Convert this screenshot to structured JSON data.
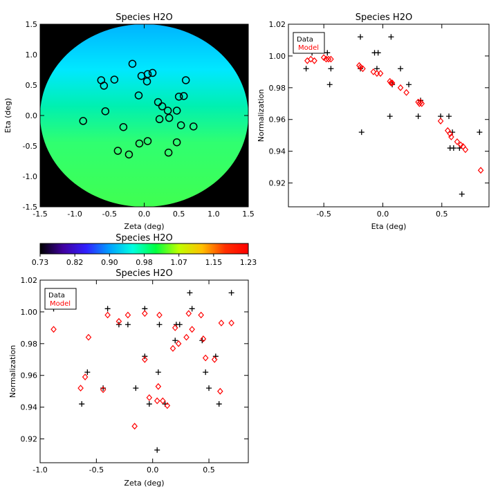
{
  "chart_data": [
    {
      "id": "map",
      "type": "heatmap",
      "title": "Species H2O",
      "xlabel": "Zeta (deg)",
      "ylabel": "Eta (deg)",
      "xlim": [
        -1.5,
        1.5
      ],
      "ylim": [
        -1.5,
        1.5
      ],
      "xticks": [
        "-1.5",
        "-1.0",
        "-0.5",
        "0.0",
        "0.5",
        "1.0",
        "1.5"
      ],
      "yticks": [
        "-1.5",
        "-1.0",
        "-0.5",
        "0.0",
        "0.5",
        "1.0",
        "1.5"
      ],
      "background_color": "#000000",
      "field_radius_deg": 1.5,
      "field_description": "gradient in Eta: cyan-blue at top (~0.93) to green at bottom (~1.03)",
      "points": [
        [
          -0.17,
          0.85
        ],
        [
          -0.04,
          0.65
        ],
        [
          0.05,
          0.68
        ],
        [
          0.12,
          0.7
        ],
        [
          0.04,
          0.56
        ],
        [
          -0.62,
          0.58
        ],
        [
          -0.58,
          0.49
        ],
        [
          -0.43,
          0.59
        ],
        [
          0.6,
          0.58
        ],
        [
          0.5,
          0.31
        ],
        [
          0.57,
          0.32
        ],
        [
          -0.08,
          0.33
        ],
        [
          0.2,
          0.22
        ],
        [
          0.26,
          0.15
        ],
        [
          0.34,
          0.08
        ],
        [
          0.47,
          0.08
        ],
        [
          -0.56,
          0.07
        ],
        [
          -0.88,
          -0.09
        ],
        [
          0.22,
          -0.06
        ],
        [
          0.36,
          -0.04
        ],
        [
          0.53,
          -0.16
        ],
        [
          0.71,
          -0.18
        ],
        [
          -0.3,
          -0.19
        ],
        [
          -0.07,
          -0.46
        ],
        [
          0.05,
          -0.42
        ],
        [
          0.47,
          -0.44
        ],
        [
          -0.38,
          -0.58
        ],
        [
          -0.22,
          -0.64
        ],
        [
          0.35,
          -0.61
        ]
      ]
    },
    {
      "id": "eta",
      "type": "scatter",
      "title": "Species H2O",
      "xlabel": "Eta (deg)",
      "ylabel": "Normalization",
      "xlim": [
        -0.8,
        0.9
      ],
      "ylim": [
        0.905,
        1.02
      ],
      "xticks": [
        -0.5,
        0.0,
        0.5
      ],
      "yticks": [
        0.92,
        0.94,
        0.96,
        0.98,
        1.0,
        1.02
      ],
      "legend": {
        "placement": "top-left",
        "entries": [
          {
            "label": "Data",
            "color": "#000000"
          },
          {
            "label": "Model",
            "color": "#ff0000"
          }
        ]
      },
      "series": [
        {
          "name": "Data",
          "marker": "plus",
          "color": "#000000",
          "points": [
            [
              -0.65,
              0.992
            ],
            [
              -0.6,
              1.002
            ],
            [
              -0.47,
              1.002
            ],
            [
              -0.45,
              0.982
            ],
            [
              -0.44,
              0.992
            ],
            [
              -0.19,
              1.012
            ],
            [
              -0.18,
              0.952
            ],
            [
              -0.19,
              0.992
            ],
            [
              -0.07,
              1.002
            ],
            [
              -0.04,
              1.002
            ],
            [
              -0.05,
              0.992
            ],
            [
              0.07,
              1.012
            ],
            [
              0.06,
              0.962
            ],
            [
              0.08,
              0.982
            ],
            [
              0.15,
              0.992
            ],
            [
              0.22,
              0.982
            ],
            [
              0.3,
              0.962
            ],
            [
              0.32,
              0.972
            ],
            [
              0.49,
              0.962
            ],
            [
              0.56,
              0.962
            ],
            [
              0.59,
              0.952
            ],
            [
              0.57,
              0.942
            ],
            [
              0.6,
              0.942
            ],
            [
              0.65,
              0.942
            ],
            [
              0.67,
              0.913
            ],
            [
              0.82,
              0.952
            ]
          ]
        },
        {
          "name": "Model",
          "marker": "diamond",
          "color": "#ff0000",
          "points": [
            [
              -0.64,
              0.997
            ],
            [
              -0.61,
              0.998
            ],
            [
              -0.58,
              0.997
            ],
            [
              -0.5,
              0.999
            ],
            [
              -0.48,
              0.998
            ],
            [
              -0.46,
              0.998
            ],
            [
              -0.44,
              0.998
            ],
            [
              -0.2,
              0.994
            ],
            [
              -0.19,
              0.993
            ],
            [
              -0.17,
              0.992
            ],
            [
              -0.08,
              0.99
            ],
            [
              -0.05,
              0.989
            ],
            [
              -0.02,
              0.989
            ],
            [
              0.06,
              0.984
            ],
            [
              0.07,
              0.983
            ],
            [
              0.08,
              0.983
            ],
            [
              0.15,
              0.98
            ],
            [
              0.2,
              0.977
            ],
            [
              0.3,
              0.971
            ],
            [
              0.31,
              0.97
            ],
            [
              0.32,
              0.971
            ],
            [
              0.33,
              0.97
            ],
            [
              0.49,
              0.959
            ],
            [
              0.55,
              0.953
            ],
            [
              0.57,
              0.951
            ],
            [
              0.58,
              0.949
            ],
            [
              0.63,
              0.946
            ],
            [
              0.66,
              0.944
            ],
            [
              0.68,
              0.943
            ],
            [
              0.7,
              0.941
            ],
            [
              0.83,
              0.928
            ]
          ]
        }
      ]
    },
    {
      "id": "colorbar",
      "type": "colorbar",
      "title": "Species H2O",
      "range": [
        0.73,
        1.23
      ],
      "ticks": [
        "0.73",
        "0.82",
        "0.90",
        "0.98",
        "1.07",
        "1.15",
        "1.23"
      ],
      "colors": [
        "#000000",
        "#4000a0",
        "#3020ff",
        "#00a0ff",
        "#00ffe0",
        "#00ff40",
        "#c0ff00",
        "#ffc000",
        "#ff3000",
        "#ff0000"
      ]
    },
    {
      "id": "zeta",
      "type": "scatter",
      "title": "Species H2O",
      "xlabel": "Zeta (deg)",
      "ylabel": "Normalization",
      "xlim": [
        -1.0,
        0.85
      ],
      "ylim": [
        0.905,
        1.02
      ],
      "xticks": [
        -1.0,
        -0.5,
        0.0,
        0.5
      ],
      "yticks": [
        0.92,
        0.94,
        0.96,
        0.98,
        1.0,
        1.02
      ],
      "legend": {
        "placement": "top-left",
        "entries": [
          {
            "label": "Data",
            "color": "#000000"
          },
          {
            "label": "Model",
            "color": "#ff0000"
          }
        ]
      },
      "series": [
        {
          "name": "Data",
          "marker": "plus",
          "color": "#000000",
          "points": [
            [
              -0.88,
              1.002
            ],
            [
              -0.63,
              0.942
            ],
            [
              -0.58,
              0.962
            ],
            [
              -0.44,
              0.952
            ],
            [
              -0.4,
              1.002
            ],
            [
              -0.3,
              0.992
            ],
            [
              -0.22,
              0.992
            ],
            [
              -0.15,
              0.952
            ],
            [
              -0.07,
              1.002
            ],
            [
              -0.07,
              0.972
            ],
            [
              -0.03,
              0.942
            ],
            [
              0.04,
              0.913
            ],
            [
              0.05,
              0.962
            ],
            [
              0.06,
              0.992
            ],
            [
              0.11,
              0.942
            ],
            [
              0.2,
              0.982
            ],
            [
              0.21,
              0.992
            ],
            [
              0.24,
              0.992
            ],
            [
              0.33,
              1.012
            ],
            [
              0.35,
              1.002
            ],
            [
              0.44,
              0.982
            ],
            [
              0.47,
              0.962
            ],
            [
              0.5,
              0.952
            ],
            [
              0.56,
              0.972
            ],
            [
              0.59,
              0.942
            ],
            [
              0.7,
              1.012
            ]
          ]
        },
        {
          "name": "Model",
          "marker": "diamond",
          "color": "#ff0000",
          "points": [
            [
              -0.88,
              0.989
            ],
            [
              -0.64,
              0.952
            ],
            [
              -0.6,
              0.959
            ],
            [
              -0.57,
              0.984
            ],
            [
              -0.44,
              0.951
            ],
            [
              -0.4,
              0.998
            ],
            [
              -0.3,
              0.994
            ],
            [
              -0.22,
              0.998
            ],
            [
              -0.16,
              0.928
            ],
            [
              -0.07,
              0.999
            ],
            [
              -0.07,
              0.97
            ],
            [
              -0.03,
              0.946
            ],
            [
              0.04,
              0.944
            ],
            [
              0.05,
              0.953
            ],
            [
              0.06,
              0.998
            ],
            [
              0.09,
              0.944
            ],
            [
              0.13,
              0.941
            ],
            [
              0.18,
              0.977
            ],
            [
              0.2,
              0.99
            ],
            [
              0.23,
              0.98
            ],
            [
              0.3,
              0.984
            ],
            [
              0.32,
              0.999
            ],
            [
              0.35,
              0.989
            ],
            [
              0.43,
              0.998
            ],
            [
              0.45,
              0.983
            ],
            [
              0.47,
              0.971
            ],
            [
              0.55,
              0.97
            ],
            [
              0.6,
              0.95
            ],
            [
              0.61,
              0.993
            ],
            [
              0.7,
              0.993
            ]
          ]
        }
      ]
    }
  ]
}
